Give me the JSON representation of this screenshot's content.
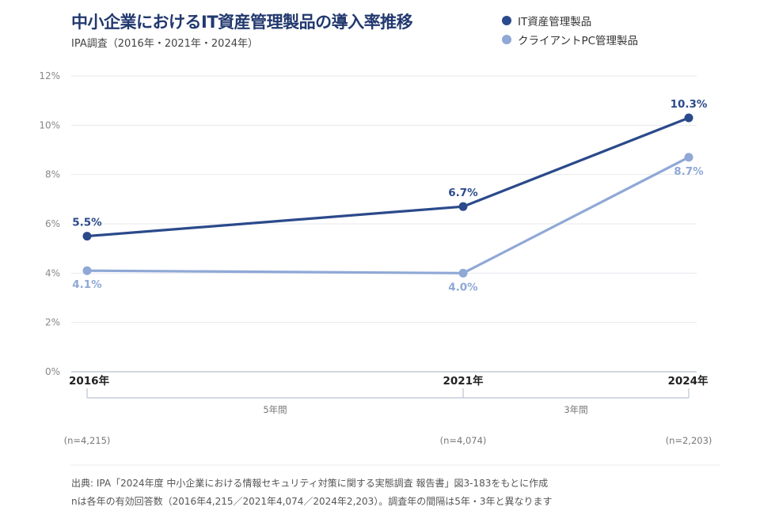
{
  "header": {
    "title": "中小企業におけるIT資産管理製品の導入率推移",
    "subtitle": "IPA調査（2016年・2021年・2024年）"
  },
  "legend": [
    {
      "label": "IT資産管理製品",
      "color": "#2b4a8b"
    },
    {
      "label": "クライアントPC管理製品",
      "color": "#8fa8d6"
    }
  ],
  "chart_data": {
    "type": "line",
    "x": [
      "2016年",
      "2021年",
      "2024年"
    ],
    "x_years": [
      2016,
      2021,
      2024
    ],
    "ylim": [
      0,
      12
    ],
    "yticks": [
      0,
      2,
      4,
      6,
      8,
      10,
      12
    ],
    "ytick_labels": [
      "0%",
      "2%",
      "4%",
      "6%",
      "8%",
      "10%",
      "12%"
    ],
    "grid": true,
    "legend_position": "top-right",
    "series": [
      {
        "name": "IT資産管理製品",
        "values": [
          5.5,
          6.7,
          10.3
        ],
        "labels": [
          "5.5%",
          "6.7%",
          "10.3%"
        ],
        "color": "#2b4a8b"
      },
      {
        "name": "クライアントPC管理製品",
        "values": [
          4.1,
          4.0,
          8.7
        ],
        "labels": [
          "4.1%",
          "4.0%",
          "8.7%"
        ],
        "color": "#8fa8d6"
      }
    ],
    "intervals": [
      "5年間",
      "3年間"
    ],
    "sample_sizes": [
      "(n=4,215)",
      "(n=4,074)",
      "(n=2,203)"
    ]
  },
  "footnote": {
    "line1": "出典: IPA「2024年度 中小企業における情報セキュリティ対策に関する実態調査 報告書」図3-183をもとに作成",
    "line2": "nは各年の有効回答数（2016年4,215／2021年4,074／2024年2,203）。調査年の間隔は5年・3年と異なります"
  }
}
